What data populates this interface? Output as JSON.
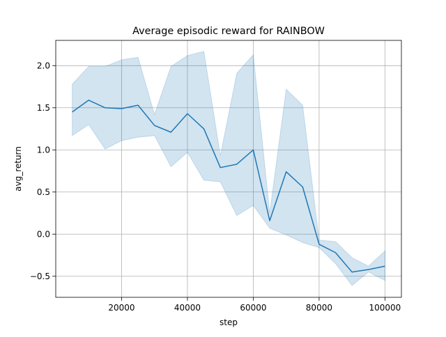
{
  "chart_data": {
    "type": "line",
    "title": "Average episodic reward for RAINBOW",
    "xlabel": "step",
    "ylabel": "avg_return",
    "xlim": [
      0,
      105000
    ],
    "ylim": [
      -0.75,
      2.3
    ],
    "xticks": [
      20000,
      40000,
      60000,
      80000,
      100000
    ],
    "yticks": [
      -0.5,
      0.0,
      0.5,
      1.0,
      1.5,
      2.0
    ],
    "grid": true,
    "legend": "none",
    "colors": {
      "line": "#1f77b4",
      "band": "#1f77b4",
      "grid": "#b0b0b0",
      "axes": "#000000"
    },
    "series": [
      {
        "x": [
          5000,
          10000,
          15000,
          20000,
          25000,
          30000,
          35000,
          40000,
          45000,
          50000,
          55000,
          60000,
          65000,
          70000,
          75000,
          80000,
          85000,
          90000,
          95000,
          100000
        ],
        "mean": [
          1.45,
          1.59,
          1.5,
          1.49,
          1.53,
          1.29,
          1.21,
          1.43,
          1.25,
          0.79,
          0.83,
          1.0,
          0.16,
          0.74,
          0.56,
          -0.12,
          -0.22,
          -0.45,
          -0.42,
          -0.38
        ],
        "lower": [
          1.17,
          1.3,
          1.01,
          1.11,
          1.15,
          1.17,
          0.8,
          0.97,
          0.64,
          0.62,
          0.22,
          0.34,
          0.07,
          -0.01,
          -0.1,
          -0.16,
          -0.35,
          -0.61,
          -0.45,
          -0.55
        ],
        "upper": [
          1.78,
          1.99,
          1.99,
          2.07,
          2.1,
          1.42,
          1.99,
          2.12,
          2.17,
          0.93,
          1.91,
          2.13,
          0.25,
          1.72,
          1.53,
          -0.07,
          -0.09,
          -0.28,
          -0.38,
          -0.2
        ]
      }
    ]
  }
}
